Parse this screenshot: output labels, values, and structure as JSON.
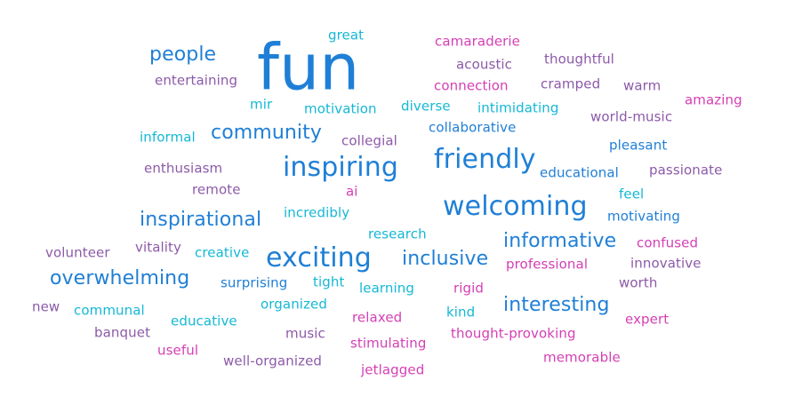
{
  "words": [
    {
      "text": "fun",
      "color": "#1f7fd6"
    },
    {
      "text": "great",
      "color": "#14b8d4"
    },
    {
      "text": "camaraderie",
      "color": "#d43fb4"
    },
    {
      "text": "people",
      "color": "#1f7fd6"
    },
    {
      "text": "acoustic",
      "color": "#8c5aa8"
    },
    {
      "text": "thoughtful",
      "color": "#8c5aa8"
    },
    {
      "text": "entertaining",
      "color": "#8c5aa8"
    },
    {
      "text": "connection",
      "color": "#d43fb4"
    },
    {
      "text": "cramped",
      "color": "#8c5aa8"
    },
    {
      "text": "warm",
      "color": "#8c5aa8"
    },
    {
      "text": "mir",
      "color": "#14b8d4"
    },
    {
      "text": "motivation",
      "color": "#14b8d4"
    },
    {
      "text": "diverse",
      "color": "#14b8d4"
    },
    {
      "text": "intimidating",
      "color": "#14b8d4"
    },
    {
      "text": "amazing",
      "color": "#d43fb4"
    },
    {
      "text": "world-music",
      "color": "#8c5aa8"
    },
    {
      "text": "informal",
      "color": "#14b8d4"
    },
    {
      "text": "community",
      "color": "#1f7fd6"
    },
    {
      "text": "collegial",
      "color": "#8c5aa8"
    },
    {
      "text": "collaborative",
      "color": "#1f7fd6"
    },
    {
      "text": "pleasant",
      "color": "#1f7fd6"
    },
    {
      "text": "friendly",
      "color": "#1f7fd6"
    },
    {
      "text": "inspiring",
      "color": "#1f7fd6"
    },
    {
      "text": "enthusiasm",
      "color": "#8c5aa8"
    },
    {
      "text": "educational",
      "color": "#1f7fd6"
    },
    {
      "text": "passionate",
      "color": "#8c5aa8"
    },
    {
      "text": "remote",
      "color": "#8c5aa8"
    },
    {
      "text": "ai",
      "color": "#d43fb4"
    },
    {
      "text": "feel",
      "color": "#14b8d4"
    },
    {
      "text": "welcoming",
      "color": "#1f7fd6"
    },
    {
      "text": "inspirational",
      "color": "#1f7fd6"
    },
    {
      "text": "incredibly",
      "color": "#14b8d4"
    },
    {
      "text": "motivating",
      "color": "#1f7fd6"
    },
    {
      "text": "research",
      "color": "#14b8d4"
    },
    {
      "text": "informative",
      "color": "#1f7fd6"
    },
    {
      "text": "confused",
      "color": "#d43fb4"
    },
    {
      "text": "volunteer",
      "color": "#8c5aa8"
    },
    {
      "text": "vitality",
      "color": "#8c5aa8"
    },
    {
      "text": "creative",
      "color": "#14b8d4"
    },
    {
      "text": "exciting",
      "color": "#1f7fd6"
    },
    {
      "text": "inclusive",
      "color": "#1f7fd6"
    },
    {
      "text": "professional",
      "color": "#d43fb4"
    },
    {
      "text": "innovative",
      "color": "#8c5aa8"
    },
    {
      "text": "overwhelming",
      "color": "#1f7fd6"
    },
    {
      "text": "surprising",
      "color": "#1f7fd6"
    },
    {
      "text": "tight",
      "color": "#14b8d4"
    },
    {
      "text": "learning",
      "color": "#14b8d4"
    },
    {
      "text": "rigid",
      "color": "#d43fb4"
    },
    {
      "text": "worth",
      "color": "#8c5aa8"
    },
    {
      "text": "new",
      "color": "#8c5aa8"
    },
    {
      "text": "communal",
      "color": "#14b8d4"
    },
    {
      "text": "organized",
      "color": "#14b8d4"
    },
    {
      "text": "interesting",
      "color": "#1f7fd6"
    },
    {
      "text": "educative",
      "color": "#14b8d4"
    },
    {
      "text": "relaxed",
      "color": "#d43fb4"
    },
    {
      "text": "kind",
      "color": "#14b8d4"
    },
    {
      "text": "expert",
      "color": "#d43fb4"
    },
    {
      "text": "banquet",
      "color": "#8c5aa8"
    },
    {
      "text": "music",
      "color": "#8c5aa8"
    },
    {
      "text": "thought-provoking",
      "color": "#d43fb4"
    },
    {
      "text": "useful",
      "color": "#d43fb4"
    },
    {
      "text": "stimulating",
      "color": "#d43fb4"
    },
    {
      "text": "memorable",
      "color": "#d43fb4"
    },
    {
      "text": "well-organized",
      "color": "#8c5aa8"
    },
    {
      "text": "jetlagged",
      "color": "#d43fb4"
    }
  ]
}
